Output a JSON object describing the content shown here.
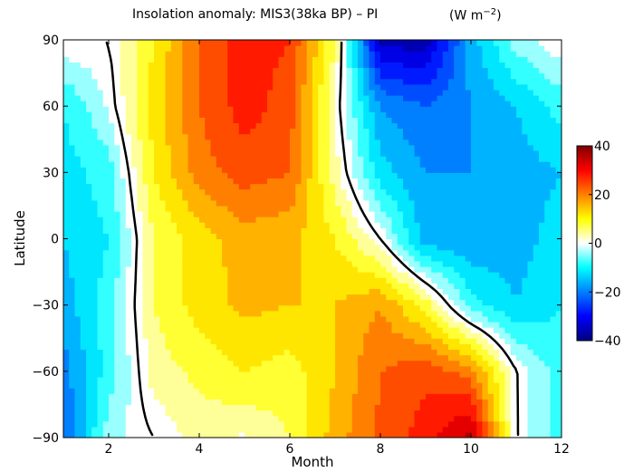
{
  "chart_data": {
    "type": "heatmap",
    "title": "Insolation anomaly: MIS3(38ka BP) – PI",
    "units_prefix": "(W m",
    "units_exponent": "−2",
    "units_suffix": ")",
    "xlabel": "Month",
    "ylabel": "Latitude",
    "xlim": [
      1,
      12
    ],
    "ylim": [
      -90,
      90
    ],
    "x_ticks": [
      2,
      4,
      6,
      8,
      10,
      12
    ],
    "x_tick_labels": [
      "2",
      "4",
      "6",
      "8",
      "10",
      "12"
    ],
    "y_ticks": [
      90,
      60,
      30,
      0,
      -30,
      -60,
      -90
    ],
    "y_tick_labels": [
      "90",
      "60",
      "30",
      "0",
      "−30",
      "−60",
      "−90"
    ],
    "colorbar": {
      "range": [
        -40,
        40
      ],
      "ticks": [
        40,
        20,
        0,
        -20,
        -40
      ],
      "tick_labels": [
        "40",
        "20",
        "0",
        "−20",
        "−40"
      ]
    },
    "contour_levels_step": 4,
    "zero_contour": true,
    "z_latitudes": [
      -90,
      -60,
      -30,
      0,
      30,
      60,
      90
    ],
    "z_months": [
      1,
      2,
      3,
      4,
      5,
      6,
      7,
      8,
      9,
      10,
      11,
      12
    ],
    "z": [
      [
        -22,
        -4,
        0,
        4,
        2,
        6,
        16,
        23,
        28,
        36,
        0,
        -8
      ],
      [
        -20,
        -8,
        4,
        7,
        10,
        8,
        14,
        22,
        25,
        20,
        0,
        -8
      ],
      [
        -16,
        -8,
        6,
        12,
        15,
        14,
        14,
        18,
        8,
        -8,
        -14,
        -10
      ],
      [
        -14,
        -10,
        6,
        12,
        16,
        15,
        10,
        0,
        -16,
        -18,
        -16,
        -12
      ],
      [
        -12,
        -8,
        10,
        20,
        24,
        22,
        4,
        -12,
        -18,
        -18,
        -16,
        -14
      ],
      [
        -10,
        -2,
        12,
        22,
        28,
        24,
        2,
        -18,
        -22,
        -18,
        -14,
        -8
      ],
      [
        0,
        0,
        10,
        22,
        28,
        26,
        6,
        -36,
        -36,
        -16,
        -4,
        0
      ]
    ]
  }
}
